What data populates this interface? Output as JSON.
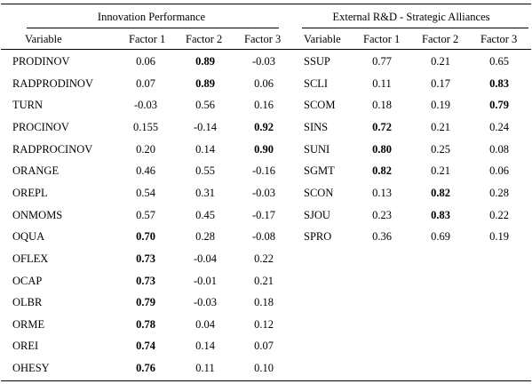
{
  "groups": [
    {
      "title": "Innovation Performance",
      "headers": [
        "Variable",
        "Factor 1",
        "Factor 2",
        "Factor 3"
      ],
      "rows": [
        {
          "variable": "PRODINOV",
          "values": [
            "0.06",
            "0.89",
            "-0.03"
          ],
          "bold": [
            false,
            true,
            false
          ]
        },
        {
          "variable": "RADPRODINOV",
          "values": [
            "0.07",
            "0.89",
            "0.06"
          ],
          "bold": [
            false,
            true,
            false
          ]
        },
        {
          "variable": "TURN",
          "values": [
            "-0.03",
            "0.56",
            "0.16"
          ],
          "bold": [
            false,
            false,
            false
          ]
        },
        {
          "variable": "PROCINOV",
          "values": [
            "0.155",
            "-0.14",
            "0.92"
          ],
          "bold": [
            false,
            false,
            true
          ]
        },
        {
          "variable": "RADPROCINOV",
          "values": [
            "0.20",
            "0.14",
            "0.90"
          ],
          "bold": [
            false,
            false,
            true
          ]
        },
        {
          "variable": "ORANGE",
          "values": [
            "0.46",
            "0.55",
            "-0.16"
          ],
          "bold": [
            false,
            false,
            false
          ]
        },
        {
          "variable": "OREPL",
          "values": [
            "0.54",
            "0.31",
            "-0.03"
          ],
          "bold": [
            false,
            false,
            false
          ]
        },
        {
          "variable": "ONMOMS",
          "values": [
            "0.57",
            "0.45",
            "-0.17"
          ],
          "bold": [
            false,
            false,
            false
          ]
        },
        {
          "variable": "OQUA",
          "values": [
            "0.70",
            "0.28",
            "-0.08"
          ],
          "bold": [
            true,
            false,
            false
          ]
        },
        {
          "variable": "OFLEX",
          "values": [
            "0.73",
            "-0.04",
            "0.22"
          ],
          "bold": [
            true,
            false,
            false
          ]
        },
        {
          "variable": "OCAP",
          "values": [
            "0.73",
            "-0.01",
            "0.21"
          ],
          "bold": [
            true,
            false,
            false
          ]
        },
        {
          "variable": "OLBR",
          "values": [
            "0.79",
            "-0.03",
            "0.18"
          ],
          "bold": [
            true,
            false,
            false
          ]
        },
        {
          "variable": "ORME",
          "values": [
            "0.78",
            "0.04",
            "0.12"
          ],
          "bold": [
            true,
            false,
            false
          ]
        },
        {
          "variable": "OREI",
          "values": [
            "0.74",
            "0.14",
            "0.07"
          ],
          "bold": [
            true,
            false,
            false
          ]
        },
        {
          "variable": "OHESY",
          "values": [
            "0.76",
            "0.11",
            "0.10"
          ],
          "bold": [
            true,
            false,
            false
          ]
        }
      ]
    },
    {
      "title": "External R&D - Strategic Alliances",
      "headers": [
        "Variable",
        "Factor 1",
        "Factor 2",
        "Factor 3"
      ],
      "rows": [
        {
          "variable": "SSUP",
          "values": [
            "0.77",
            "0.21",
            "0.65"
          ],
          "bold": [
            false,
            false,
            false
          ]
        },
        {
          "variable": "SCLI",
          "values": [
            "0.11",
            "0.17",
            "0.83"
          ],
          "bold": [
            false,
            false,
            true
          ]
        },
        {
          "variable": "SCOM",
          "values": [
            "0.18",
            "0.19",
            "0.79"
          ],
          "bold": [
            false,
            false,
            true
          ]
        },
        {
          "variable": "SINS",
          "values": [
            "0.72",
            "0.21",
            "0.24"
          ],
          "bold": [
            true,
            false,
            false
          ]
        },
        {
          "variable": "SUNI",
          "values": [
            "0.80",
            "0.25",
            "0.08"
          ],
          "bold": [
            true,
            false,
            false
          ]
        },
        {
          "variable": "SGMT",
          "values": [
            "0.82",
            "0.21",
            "0.06"
          ],
          "bold": [
            true,
            false,
            false
          ]
        },
        {
          "variable": "SCON",
          "values": [
            "0.13",
            "0.82",
            "0.28"
          ],
          "bold": [
            false,
            true,
            false
          ]
        },
        {
          "variable": "SJOU",
          "values": [
            "0.23",
            "0.83",
            "0.22"
          ],
          "bold": [
            false,
            true,
            false
          ]
        },
        {
          "variable": "SPRO",
          "values": [
            "0.36",
            "0.69",
            "0.19"
          ],
          "bold": [
            false,
            false,
            false
          ]
        }
      ]
    }
  ]
}
